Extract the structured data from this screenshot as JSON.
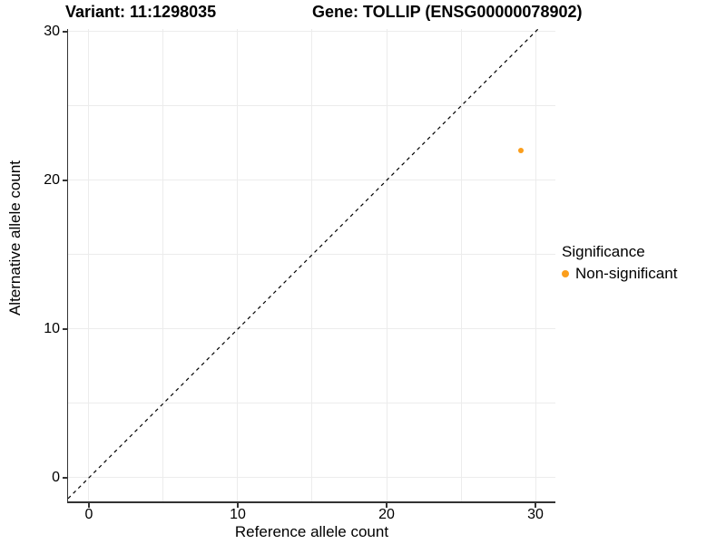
{
  "chart_data": {
    "type": "scatter",
    "title_left": "Variant: 11:1298035",
    "title_right": "Gene: TOLLIP (ENSG00000078902)",
    "xlabel": "Reference allele count",
    "ylabel": "Alternative allele count",
    "xlim": [
      -1.4,
      31.34
    ],
    "ylim": [
      -1.59,
      30.18
    ],
    "xticks": [
      0,
      10,
      20,
      30
    ],
    "yticks": [
      0,
      10,
      20,
      30
    ],
    "grid_values": [
      0,
      5,
      10,
      15,
      20,
      25,
      30
    ],
    "grid": true,
    "legend_position": "right",
    "points": [
      {
        "x": 29,
        "y": 22,
        "series": "Non-significant"
      }
    ],
    "abline": {
      "slope": 1,
      "intercept": 0,
      "style": "dashed"
    },
    "legend": {
      "title": "Significance",
      "entries": [
        {
          "label": "Non-significant",
          "color": "#FB9E1C"
        }
      ]
    }
  },
  "colors": {
    "point_orange": "#FB9E1C",
    "gridline": "#ececec",
    "axis_line": "#333333",
    "abline": "#000000",
    "text": "#000000",
    "background": "#ffffff"
  }
}
